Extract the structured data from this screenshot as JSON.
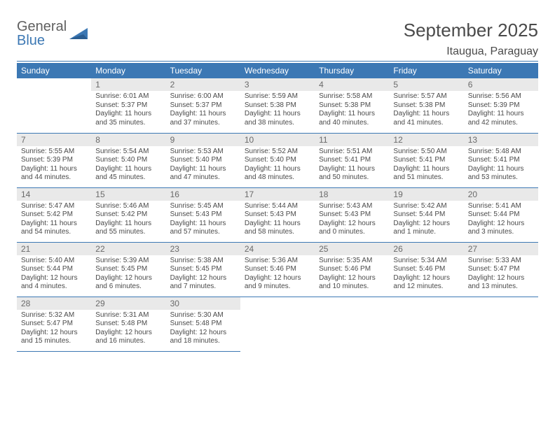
{
  "brand": {
    "word1": "General",
    "word2": "Blue"
  },
  "header": {
    "title": "September 2025",
    "location": "Itaugua, Paraguay"
  },
  "colors": {
    "accent": "#3c78b4",
    "header_cell_bg": "#e9e9e9",
    "page_bg": "#ffffff",
    "text": "#4a4a4a",
    "header_text": "#ffffff"
  },
  "typography": {
    "title_fontsize": 26,
    "location_fontsize": 16,
    "weekday_fontsize": 12,
    "daynum_fontsize": 12,
    "body_fontsize": 10
  },
  "calendar": {
    "type": "table",
    "columns": [
      "Sunday",
      "Monday",
      "Tuesday",
      "Wednesday",
      "Thursday",
      "Friday",
      "Saturday"
    ],
    "weeks": [
      [
        null,
        {
          "n": "1",
          "sunrise": "6:01 AM",
          "sunset": "5:37 PM",
          "daylight": "11 hours and 35 minutes."
        },
        {
          "n": "2",
          "sunrise": "6:00 AM",
          "sunset": "5:37 PM",
          "daylight": "11 hours and 37 minutes."
        },
        {
          "n": "3",
          "sunrise": "5:59 AM",
          "sunset": "5:38 PM",
          "daylight": "11 hours and 38 minutes."
        },
        {
          "n": "4",
          "sunrise": "5:58 AM",
          "sunset": "5:38 PM",
          "daylight": "11 hours and 40 minutes."
        },
        {
          "n": "5",
          "sunrise": "5:57 AM",
          "sunset": "5:38 PM",
          "daylight": "11 hours and 41 minutes."
        },
        {
          "n": "6",
          "sunrise": "5:56 AM",
          "sunset": "5:39 PM",
          "daylight": "11 hours and 42 minutes."
        }
      ],
      [
        {
          "n": "7",
          "sunrise": "5:55 AM",
          "sunset": "5:39 PM",
          "daylight": "11 hours and 44 minutes."
        },
        {
          "n": "8",
          "sunrise": "5:54 AM",
          "sunset": "5:40 PM",
          "daylight": "11 hours and 45 minutes."
        },
        {
          "n": "9",
          "sunrise": "5:53 AM",
          "sunset": "5:40 PM",
          "daylight": "11 hours and 47 minutes."
        },
        {
          "n": "10",
          "sunrise": "5:52 AM",
          "sunset": "5:40 PM",
          "daylight": "11 hours and 48 minutes."
        },
        {
          "n": "11",
          "sunrise": "5:51 AM",
          "sunset": "5:41 PM",
          "daylight": "11 hours and 50 minutes."
        },
        {
          "n": "12",
          "sunrise": "5:50 AM",
          "sunset": "5:41 PM",
          "daylight": "11 hours and 51 minutes."
        },
        {
          "n": "13",
          "sunrise": "5:48 AM",
          "sunset": "5:41 PM",
          "daylight": "11 hours and 53 minutes."
        }
      ],
      [
        {
          "n": "14",
          "sunrise": "5:47 AM",
          "sunset": "5:42 PM",
          "daylight": "11 hours and 54 minutes."
        },
        {
          "n": "15",
          "sunrise": "5:46 AM",
          "sunset": "5:42 PM",
          "daylight": "11 hours and 55 minutes."
        },
        {
          "n": "16",
          "sunrise": "5:45 AM",
          "sunset": "5:43 PM",
          "daylight": "11 hours and 57 minutes."
        },
        {
          "n": "17",
          "sunrise": "5:44 AM",
          "sunset": "5:43 PM",
          "daylight": "11 hours and 58 minutes."
        },
        {
          "n": "18",
          "sunrise": "5:43 AM",
          "sunset": "5:43 PM",
          "daylight": "12 hours and 0 minutes."
        },
        {
          "n": "19",
          "sunrise": "5:42 AM",
          "sunset": "5:44 PM",
          "daylight": "12 hours and 1 minute."
        },
        {
          "n": "20",
          "sunrise": "5:41 AM",
          "sunset": "5:44 PM",
          "daylight": "12 hours and 3 minutes."
        }
      ],
      [
        {
          "n": "21",
          "sunrise": "5:40 AM",
          "sunset": "5:44 PM",
          "daylight": "12 hours and 4 minutes."
        },
        {
          "n": "22",
          "sunrise": "5:39 AM",
          "sunset": "5:45 PM",
          "daylight": "12 hours and 6 minutes."
        },
        {
          "n": "23",
          "sunrise": "5:38 AM",
          "sunset": "5:45 PM",
          "daylight": "12 hours and 7 minutes."
        },
        {
          "n": "24",
          "sunrise": "5:36 AM",
          "sunset": "5:46 PM",
          "daylight": "12 hours and 9 minutes."
        },
        {
          "n": "25",
          "sunrise": "5:35 AM",
          "sunset": "5:46 PM",
          "daylight": "12 hours and 10 minutes."
        },
        {
          "n": "26",
          "sunrise": "5:34 AM",
          "sunset": "5:46 PM",
          "daylight": "12 hours and 12 minutes."
        },
        {
          "n": "27",
          "sunrise": "5:33 AM",
          "sunset": "5:47 PM",
          "daylight": "12 hours and 13 minutes."
        }
      ],
      [
        {
          "n": "28",
          "sunrise": "5:32 AM",
          "sunset": "5:47 PM",
          "daylight": "12 hours and 15 minutes."
        },
        {
          "n": "29",
          "sunrise": "5:31 AM",
          "sunset": "5:48 PM",
          "daylight": "12 hours and 16 minutes."
        },
        {
          "n": "30",
          "sunrise": "5:30 AM",
          "sunset": "5:48 PM",
          "daylight": "12 hours and 18 minutes."
        },
        null,
        null,
        null,
        null
      ]
    ],
    "labels": {
      "sunrise": "Sunrise:",
      "sunset": "Sunset:",
      "daylight": "Daylight:"
    }
  }
}
